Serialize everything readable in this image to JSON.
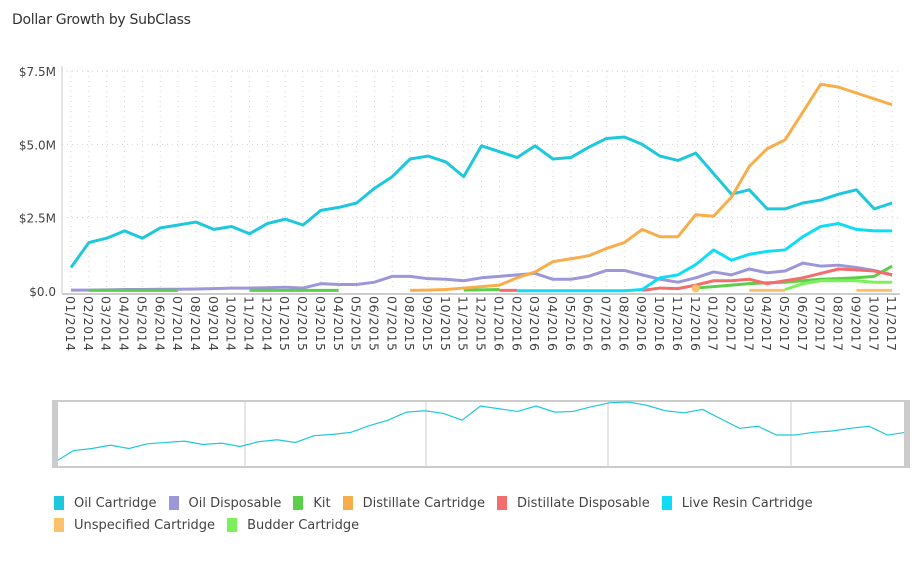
{
  "title": "Dollar Growth by SubClass",
  "chart_data": {
    "type": "line",
    "title": "Dollar Growth by SubClass",
    "xlabel": "",
    "ylabel": "",
    "ylim": [
      0,
      7.5
    ],
    "y_unit": "$M",
    "y_ticks": [
      "$0.0",
      "$2.5M",
      "$5.0M",
      "$7.5M"
    ],
    "y_tick_values": [
      0,
      2.5,
      5.0,
      7.5
    ],
    "grid": true,
    "legend_position": "bottom",
    "navigator": true,
    "categories": [
      "01/2014",
      "02/2014",
      "03/2014",
      "04/2014",
      "05/2014",
      "06/2014",
      "07/2014",
      "08/2014",
      "09/2014",
      "10/2014",
      "11/2014",
      "12/2014",
      "01/2015",
      "02/2015",
      "03/2015",
      "04/2015",
      "05/2015",
      "06/2015",
      "07/2015",
      "08/2015",
      "09/2015",
      "10/2015",
      "11/2015",
      "12/2015",
      "01/2016",
      "02/2016",
      "03/2016",
      "04/2016",
      "05/2016",
      "06/2016",
      "07/2016",
      "08/2016",
      "09/2016",
      "10/2016",
      "11/2016",
      "12/2016",
      "01/2017",
      "02/2017",
      "03/2017",
      "04/2017",
      "05/2017",
      "06/2017",
      "07/2017",
      "08/2017",
      "09/2017",
      "10/2017",
      "11/2017"
    ],
    "series": [
      {
        "name": "Oil Cartridge",
        "color": "#1ec8dc",
        "values": [
          0.8,
          1.65,
          1.8,
          2.05,
          1.8,
          2.15,
          2.25,
          2.35,
          2.1,
          2.2,
          1.95,
          2.3,
          2.45,
          2.25,
          2.75,
          2.85,
          3.0,
          3.5,
          3.9,
          4.5,
          4.6,
          4.4,
          3.9,
          4.95,
          4.75,
          4.55,
          4.95,
          4.5,
          4.55,
          4.9,
          5.2,
          5.25,
          5.0,
          4.6,
          4.45,
          4.7,
          4.0,
          3.3,
          3.45,
          2.8,
          2.8,
          3.0,
          3.1,
          3.3,
          3.45,
          2.8,
          3.0
        ]
      },
      {
        "name": "Oil Disposable",
        "color": "#9b97d8",
        "values": [
          0.03,
          0.03,
          0.04,
          0.05,
          0.05,
          0.06,
          0.06,
          0.07,
          0.08,
          0.1,
          0.1,
          0.11,
          0.13,
          0.1,
          0.25,
          0.22,
          0.22,
          0.3,
          0.5,
          0.5,
          0.42,
          0.4,
          0.35,
          0.45,
          0.5,
          0.55,
          0.6,
          0.4,
          0.4,
          0.5,
          0.7,
          0.7,
          0.55,
          0.4,
          0.3,
          0.45,
          0.65,
          0.55,
          0.75,
          0.62,
          0.68,
          0.95,
          0.85,
          0.88,
          0.8,
          0.7,
          0.55
        ]
      },
      {
        "name": "Kit",
        "color": "#5ccf4a",
        "values": [
          null,
          0.02,
          0.02,
          0.02,
          0.02,
          0.02,
          0.02,
          null,
          null,
          null,
          0.02,
          0.02,
          0.02,
          0.02,
          0.02,
          0.02,
          null,
          null,
          null,
          null,
          null,
          null,
          0.03,
          0.04,
          0.05,
          null,
          null,
          null,
          null,
          null,
          null,
          null,
          null,
          null,
          null,
          0.1,
          0.15,
          0.2,
          0.25,
          0.28,
          0.3,
          0.35,
          0.4,
          0.42,
          0.45,
          0.5,
          0.85
        ]
      },
      {
        "name": "Distillate Cartridge",
        "color": "#f7ae4a",
        "values": [
          null,
          null,
          null,
          null,
          null,
          null,
          null,
          null,
          null,
          null,
          null,
          null,
          null,
          null,
          null,
          null,
          null,
          null,
          null,
          0.02,
          0.03,
          0.05,
          0.1,
          0.15,
          0.2,
          0.45,
          0.65,
          1.0,
          1.1,
          1.2,
          1.45,
          1.65,
          2.1,
          1.85,
          1.85,
          2.6,
          2.55,
          3.2,
          4.25,
          4.85,
          5.15,
          6.1,
          7.05,
          6.95,
          6.75,
          6.55,
          6.35
        ]
      },
      {
        "name": "Distillate Disposable",
        "color": "#f46d6d",
        "values": [
          null,
          null,
          null,
          null,
          null,
          null,
          null,
          null,
          null,
          null,
          null,
          null,
          null,
          null,
          null,
          null,
          null,
          null,
          null,
          null,
          null,
          null,
          null,
          null,
          0.02,
          0.02,
          null,
          null,
          null,
          null,
          null,
          null,
          0.02,
          0.1,
          0.08,
          0.2,
          0.35,
          0.35,
          0.4,
          0.25,
          0.35,
          0.45,
          0.6,
          0.75,
          0.72,
          0.68,
          0.55
        ]
      },
      {
        "name": "Live Resin Cartridge",
        "color": "#11dcf5",
        "values": [
          null,
          null,
          null,
          null,
          null,
          null,
          null,
          null,
          null,
          null,
          null,
          null,
          null,
          null,
          null,
          null,
          null,
          null,
          null,
          null,
          null,
          null,
          null,
          null,
          null,
          0.01,
          0.01,
          0.01,
          0.01,
          0.01,
          0.01,
          0.01,
          0.05,
          0.45,
          0.55,
          0.9,
          1.4,
          1.05,
          1.25,
          1.35,
          1.4,
          1.85,
          2.2,
          2.3,
          2.1,
          2.05,
          2.05
        ]
      },
      {
        "name": "Unspecified Cartridge",
        "color": "#fcc26a",
        "values": [
          null,
          null,
          null,
          null,
          null,
          null,
          null,
          null,
          null,
          null,
          null,
          null,
          null,
          null,
          null,
          null,
          null,
          null,
          null,
          null,
          null,
          null,
          null,
          null,
          null,
          null,
          null,
          null,
          null,
          null,
          null,
          null,
          null,
          null,
          null,
          0.02,
          null,
          null,
          0.02,
          0.02,
          0.02,
          null,
          null,
          null,
          0.02,
          0.02,
          0.02
        ]
      },
      {
        "name": "Budder Cartridge",
        "color": "#7cf05a",
        "values": [
          null,
          null,
          null,
          null,
          null,
          null,
          null,
          null,
          null,
          null,
          null,
          null,
          null,
          null,
          null,
          null,
          null,
          null,
          null,
          null,
          null,
          null,
          null,
          null,
          null,
          null,
          null,
          null,
          null,
          null,
          null,
          null,
          null,
          null,
          null,
          null,
          null,
          null,
          null,
          null,
          0.05,
          0.25,
          0.35,
          0.35,
          0.35,
          0.3,
          0.3
        ]
      }
    ]
  }
}
